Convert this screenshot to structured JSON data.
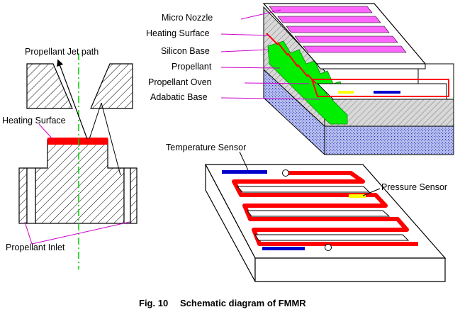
{
  "labels": {
    "micro_nozzle": "Micro Nozzle",
    "heating_surface_right": "Heating Surface",
    "silicon_base": "Silicon Base",
    "propellant": "Propellant",
    "propellant_oven": "Propellant Oven",
    "adiabatic_base": "Adabatic Base",
    "propellant_jet_path": "Propellant Jet path",
    "heating_surface_left": "Heating Surface",
    "propellant_inlet": "Propellant Inlet",
    "temperature_sensor": "Temperature Sensor",
    "pressure_sensor": "Pressure Sensor"
  },
  "caption": {
    "number": "Fig. 10",
    "title": "Schematic diagram of FMMR"
  },
  "colors": {
    "heater_red": "#ff0000",
    "nozzle_magenta": "#ff66ff",
    "propellant_green": "#00ee00",
    "sensor_blue": "#0000cc",
    "pressure_yellow": "#ffff00",
    "substrate_blue": "#8a96e0",
    "centerline_green": "#00cc00",
    "leader_magenta": "#cc00cc"
  }
}
